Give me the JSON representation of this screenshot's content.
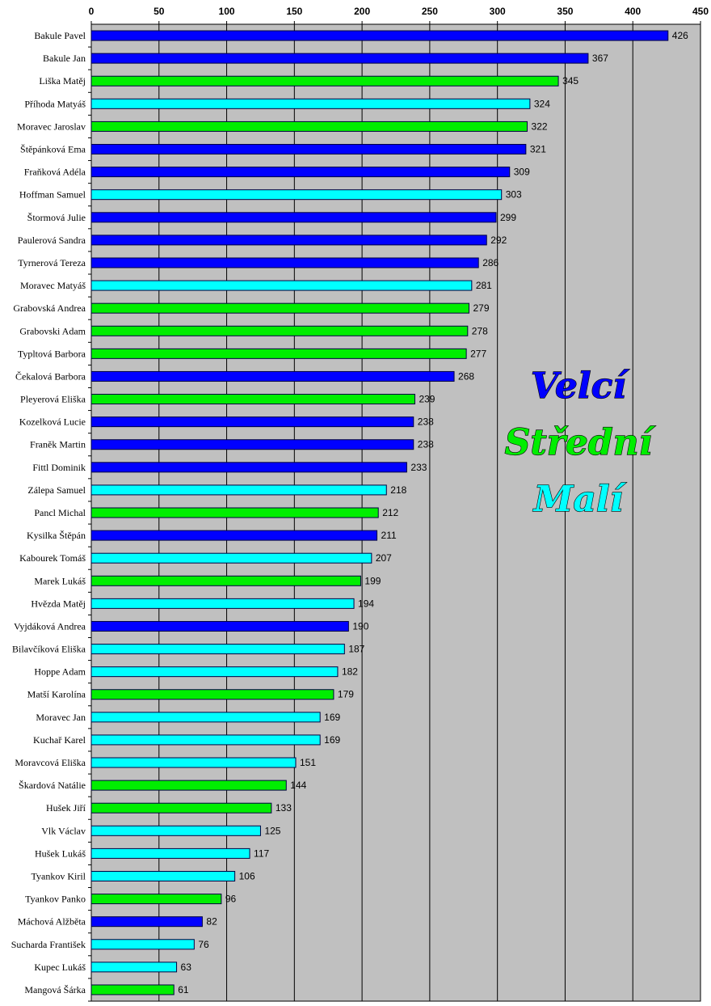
{
  "chart_data": {
    "type": "bar",
    "orientation": "horizontal",
    "xlim": [
      0,
      450
    ],
    "xticks": [
      0,
      50,
      100,
      150,
      200,
      250,
      300,
      350,
      400,
      450
    ],
    "grid": true,
    "legend": {
      "position": "right-middle",
      "entries": [
        {
          "label": "Velcí",
          "color": "#0000ff"
        },
        {
          "label": "Střední",
          "color": "#00ee00"
        },
        {
          "label": "Malí",
          "color": "#00ffff"
        }
      ]
    },
    "categories": [
      "Bakule Pavel",
      "Bakule Jan",
      "Liška Matěj",
      "Příhoda Matyáš",
      "Moravec Jaroslav",
      "Štěpánková Ema",
      "Fraňková Adéla",
      "Hoffman Samuel",
      "Štormová Julie",
      "Paulerová Sandra",
      "Tyrnerová Tereza",
      "Moravec Matyáš",
      "Grabovská Andrea",
      "Grabovski Adam",
      "Typltová Barbora",
      "Čekalová Barbora",
      "Pleyerová Eliška",
      "Kozelková Lucie",
      "Franěk Martin",
      "Fittl Dominik",
      "Zálepa Samuel",
      "Pancl Michal",
      "Kysilka Štěpán",
      "Kabourek Tomáš",
      "Marek Lukáš",
      "Hvězda Matěj",
      "Vyjdáková Andrea",
      "Bilavčíková Eliška",
      "Hoppe Adam",
      "Matší Karolína",
      "Moravec Jan",
      "Kuchař Karel",
      "Moravcová Eliška",
      "Škardová Natálie",
      "Hušek Jiří",
      "Vlk Václav",
      "Hušek Lukáš",
      "Tyankov Kiril",
      "Tyankov Panko",
      "Máchová Alžběta",
      "Sucharda František",
      "Kupec Lukáš",
      "Mangová Šárka"
    ],
    "values": [
      426,
      367,
      345,
      324,
      322,
      321,
      309,
      303,
      299,
      292,
      286,
      281,
      279,
      278,
      277,
      268,
      239,
      238,
      238,
      233,
      218,
      212,
      211,
      207,
      199,
      194,
      190,
      187,
      182,
      179,
      169,
      169,
      151,
      144,
      133,
      125,
      117,
      106,
      96,
      82,
      76,
      63,
      61
    ],
    "groups": [
      "Velcí",
      "Velcí",
      "Střední",
      "Malí",
      "Střední",
      "Velcí",
      "Velcí",
      "Malí",
      "Velcí",
      "Velcí",
      "Velcí",
      "Malí",
      "Střední",
      "Střední",
      "Střední",
      "Velcí",
      "Střední",
      "Velcí",
      "Velcí",
      "Velcí",
      "Malí",
      "Střední",
      "Velcí",
      "Malí",
      "Střední",
      "Malí",
      "Velcí",
      "Malí",
      "Malí",
      "Střední",
      "Malí",
      "Malí",
      "Malí",
      "Střední",
      "Střední",
      "Malí",
      "Malí",
      "Malí",
      "Střední",
      "Velcí",
      "Malí",
      "Malí",
      "Střední"
    ]
  }
}
